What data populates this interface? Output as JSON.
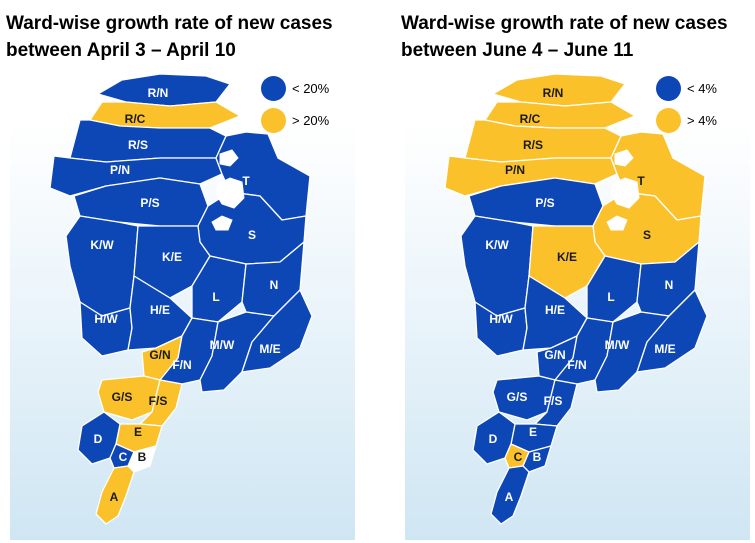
{
  "colors": {
    "blue": "#0d47b6",
    "yellow": "#fbc12a",
    "white": "#ffffff"
  },
  "maps": [
    {
      "title_line1": "Ward-wise growth rate of new cases",
      "title_line2": "between April 3 – April 10",
      "legend": [
        {
          "label": "< 20%",
          "color": "#0d47b6"
        },
        {
          "label": "> 20%",
          "color": "#fbc12a"
        }
      ],
      "wards": {
        "R/N": "blue",
        "R/C": "yellow",
        "R/S": "blue",
        "P/N": "blue",
        "P/S": "blue",
        "T": "blue",
        "S": "blue",
        "K/W": "blue",
        "K/E": "blue",
        "L": "blue",
        "N": "blue",
        "H/W": "blue",
        "H/E": "blue",
        "G/N": "yellow",
        "F/N": "blue",
        "M/W": "blue",
        "M/E": "blue",
        "G/S": "yellow",
        "F/S": "yellow",
        "E": "yellow",
        "D": "blue",
        "C": "blue",
        "B": "white",
        "A": "yellow"
      }
    },
    {
      "title_line1": "Ward-wise growth rate of new cases",
      "title_line2": "between June 4 – June 11",
      "legend": [
        {
          "label": "< 4%",
          "color": "#0d47b6"
        },
        {
          "label": "> 4%",
          "color": "#fbc12a"
        }
      ],
      "wards": {
        "R/N": "yellow",
        "R/C": "yellow",
        "R/S": "yellow",
        "P/N": "yellow",
        "P/S": "blue",
        "T": "yellow",
        "S": "yellow",
        "K/W": "blue",
        "K/E": "yellow",
        "L": "blue",
        "N": "blue",
        "H/W": "blue",
        "H/E": "blue",
        "G/N": "blue",
        "F/N": "blue",
        "M/W": "blue",
        "M/E": "blue",
        "G/S": "blue",
        "F/S": "blue",
        "E": "blue",
        "D": "blue",
        "C": "yellow",
        "B": "blue",
        "A": "blue"
      }
    }
  ]
}
